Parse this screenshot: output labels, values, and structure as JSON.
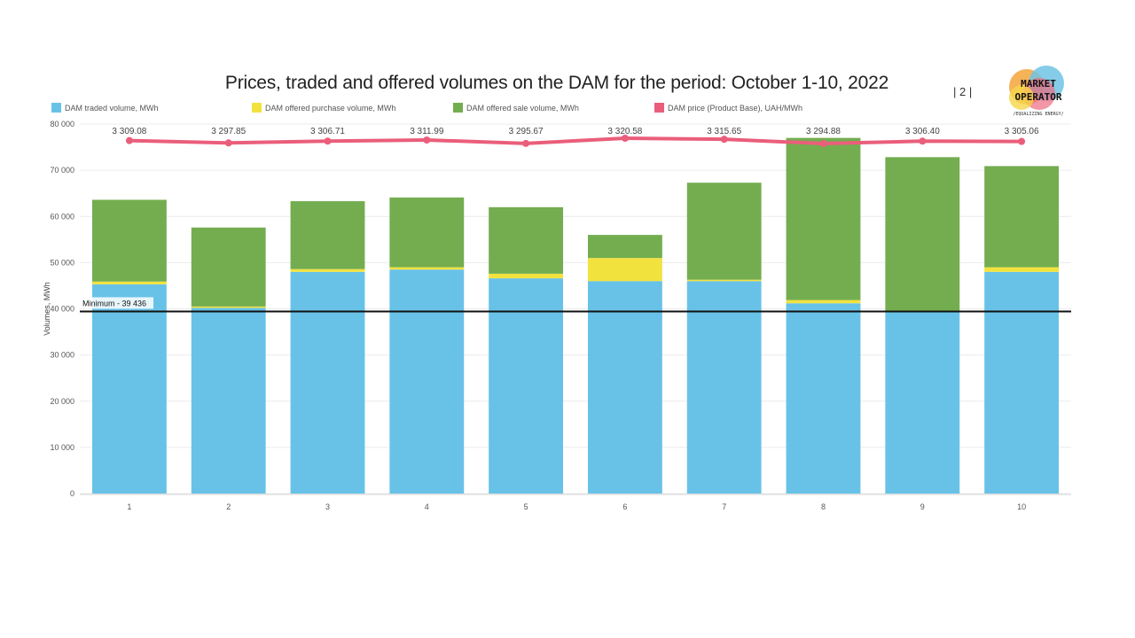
{
  "header": {
    "title": "Prices, traded and offered volumes on the DAM for the period: October 1-10, 2022",
    "page_number": "| 2 |",
    "logo_lines": [
      "MARKET",
      "OPERATOR",
      "/EQUALIZING ENERGY/"
    ]
  },
  "chart_data": {
    "type": "bar",
    "stacked": true,
    "categories": [
      "1",
      "2",
      "3",
      "4",
      "5",
      "6",
      "7",
      "8",
      "9",
      "10"
    ],
    "series": [
      {
        "name": "DAM traded volume, MWh",
        "color": "#68c2e8",
        "values": [
          45300,
          40200,
          48000,
          48500,
          46600,
          46000,
          46000,
          41200,
          39436,
          48000
        ]
      },
      {
        "name": "DAM offered purchase volume, MWh",
        "color": "#f2e23e",
        "values": [
          600,
          300,
          600,
          500,
          1000,
          5000,
          300,
          700,
          0,
          1000
        ]
      },
      {
        "name": "DAM offered sale volume, MWh",
        "color": "#73ad50",
        "values": [
          17700,
          17100,
          14700,
          15100,
          14400,
          5000,
          21000,
          35100,
          33400,
          21900
        ]
      },
      {
        "name": "DAM price (Product Base), UAH/MWh",
        "color": "#ea5e7b",
        "type": "line",
        "values": [
          3309.08,
          3297.85,
          3306.71,
          3311.99,
          3295.67,
          3320.58,
          3315.65,
          3294.88,
          3306.4,
          3305.06
        ]
      }
    ],
    "price_labels": [
      "3 309.08",
      "3 297.85",
      "3 306.71",
      "3 311.99",
      "3 295.67",
      "3 320.58",
      "3 315.65",
      "3 294.88",
      "3 306.40",
      "3 305.06"
    ],
    "ylabel": "Volumes, MWh",
    "ylim": [
      0,
      80000
    ],
    "yticks": [
      0,
      10000,
      20000,
      30000,
      40000,
      50000,
      60000,
      70000,
      80000
    ],
    "ytick_labels": [
      "0",
      "10 000",
      "20 000",
      "30 000",
      "40 000",
      "50 000",
      "60 000",
      "70 000",
      "80 000"
    ],
    "reference_line": {
      "value": 39436,
      "label": "Minimum - 39 436"
    },
    "grid": true,
    "legend_position": "top"
  }
}
